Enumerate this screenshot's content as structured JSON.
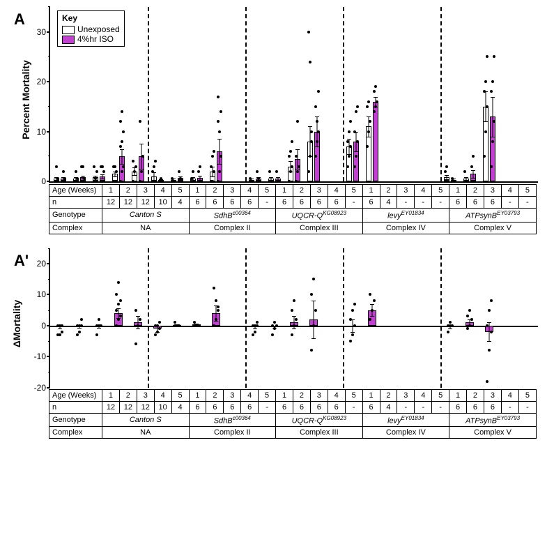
{
  "legend": {
    "title": "Key",
    "unexposed": "Unexposed",
    "exposed": "4%hr ISO"
  },
  "colors": {
    "exposed": "#c040d0",
    "unexposed": "#ffffff",
    "border": "#000000",
    "dot": "#000000"
  },
  "rowLabels": {
    "age": "Age (Weeks)",
    "n": "n",
    "genotype": "Genotype",
    "complex": "Complex"
  },
  "groups": [
    {
      "genotype": "Canton S",
      "genotype_sup": "",
      "complex": "NA",
      "weeks": 5
    },
    {
      "genotype": "SdhB",
      "genotype_sup": "c00364",
      "complex": "Complex II",
      "weeks": 5
    },
    {
      "genotype": "UQCR-Q",
      "genotype_sup": "KG08923",
      "complex": "Complex III",
      "weeks": 5
    },
    {
      "genotype": "levy",
      "genotype_sup": "EY01834",
      "complex": "Complex IV",
      "weeks": 5
    },
    {
      "genotype": "ATPsynB",
      "genotype_sup": "EY03793",
      "complex": "Complex V",
      "weeks": 5
    }
  ],
  "panelA": {
    "label": "A",
    "ylab": "Percent Mortality",
    "ylim": [
      0,
      35
    ],
    "yticks": [
      0,
      10,
      20,
      30
    ],
    "yminor_step": 5,
    "series": [
      {
        "n": [
          "12",
          "12",
          "12",
          "10",
          "4"
        ],
        "bars": [
          {
            "u": 0.6,
            "e": 0.5,
            "u_err": 0.3,
            "e_err": 0.3,
            "u_pts": [
              0,
              0,
              0,
              0,
              3,
              0.5
            ],
            "e_pts": [
              0,
              0,
              0,
              0,
              2,
              0.5
            ]
          },
          {
            "u": 0.5,
            "e": 0.8,
            "u_err": 0.3,
            "e_err": 0.3,
            "u_pts": [
              0,
              0,
              0,
              0,
              2,
              0.5
            ],
            "e_pts": [
              0,
              0,
              0,
              3,
              3,
              0.5
            ]
          },
          {
            "u": 0.8,
            "e": 1.0,
            "u_err": 0.3,
            "e_err": 0.4,
            "u_pts": [
              0,
              0,
              0,
              3,
              0.5,
              2
            ],
            "e_pts": [
              0,
              0,
              0,
              3,
              3,
              2
            ]
          },
          {
            "u": 1.5,
            "e": 5.0,
            "u_err": 0.5,
            "e_err": 1.5,
            "u_pts": [
              0,
              0,
              0,
              3,
              3,
              2
            ],
            "e_pts": [
              0,
              2,
              3,
              7,
              8,
              10,
              12,
              14
            ]
          },
          {
            "u": 2.0,
            "e": 5.0,
            "u_err": 0.8,
            "e_err": 2.5,
            "u_pts": [
              0,
              2,
              3,
              4
            ],
            "e_pts": [
              0,
              2,
              5,
              12
            ]
          }
        ]
      },
      {
        "n": [
          "6",
          "6",
          "6",
          "6",
          "-"
        ],
        "bars": [
          {
            "u": 1.0,
            "e": 0.2,
            "u_err": 0.8,
            "e_err": 0.2,
            "u_pts": [
              0,
              0,
              0,
              2,
              3,
              4
            ],
            "e_pts": [
              0,
              0,
              0,
              0,
              0.5
            ]
          },
          {
            "u": 0.3,
            "e": 0.7,
            "u_err": 0.2,
            "e_err": 0.3,
            "u_pts": [
              0,
              0,
              0,
              0.5
            ],
            "e_pts": [
              0,
              0,
              0,
              2,
              0.5
            ]
          },
          {
            "u": 0.5,
            "e": 0.7,
            "u_err": 0.3,
            "e_err": 0.4,
            "u_pts": [
              0,
              0,
              0,
              0.5,
              2
            ],
            "e_pts": [
              0,
              0,
              0,
              2,
              3
            ]
          },
          {
            "u": 2.0,
            "e": 6.0,
            "u_err": 1.0,
            "e_err": 2.5,
            "u_pts": [
              0,
              0,
              2,
              3,
              5,
              6
            ],
            "e_pts": [
              0,
              2,
              5,
              12,
              10,
              14,
              17
            ]
          },
          {
            "u": null,
            "e": null
          }
        ]
      },
      {
        "n": [
          "6",
          "6",
          "6",
          "6",
          "-"
        ],
        "bars": [
          {
            "u": 0.3,
            "e": 0.6,
            "u_err": 0.2,
            "e_err": 0.3,
            "u_pts": [
              0,
              0,
              0,
              0.5
            ],
            "e_pts": [
              0,
              0,
              0,
              2,
              0.5
            ]
          },
          {
            "u": 0.5,
            "e": 0.5,
            "u_err": 0.3,
            "e_err": 0.3,
            "u_pts": [
              0,
              0,
              0,
              2
            ],
            "e_pts": [
              0,
              0,
              0,
              2
            ]
          },
          {
            "u": 3.0,
            "e": 4.5,
            "u_err": 1.0,
            "e_err": 2.0,
            "u_pts": [
              0,
              2,
              3,
              5,
              6,
              8
            ],
            "e_pts": [
              0,
              2,
              3,
              5,
              12
            ]
          },
          {
            "u": 8.0,
            "e": 10.0,
            "u_err": 3.0,
            "e_err": 3.0,
            "u_pts": [
              2,
              5,
              8,
              30,
              24,
              10
            ],
            "e_pts": [
              5,
              8,
              10,
              15,
              12,
              18
            ]
          },
          {
            "u": null,
            "e": null
          }
        ]
      },
      {
        "n": [
          "6",
          "4",
          "-",
          "-",
          "-"
        ],
        "bars": [
          {
            "u": 7.0,
            "e": 8.0,
            "u_err": 1.5,
            "e_err": 2.0,
            "u_pts": [
              3,
              5,
              7,
              8,
              10,
              12
            ],
            "e_pts": [
              3,
              5,
              8,
              10,
              14,
              15
            ]
          },
          {
            "u": 11.0,
            "e": 16.0,
            "u_err": 2.0,
            "e_err": 1.0,
            "u_pts": [
              7,
              10,
              12,
              15,
              16
            ],
            "e_pts": [
              14,
              15,
              16,
              18,
              19
            ]
          },
          {
            "u": null,
            "e": null
          },
          {
            "u": null,
            "e": null
          },
          {
            "u": null,
            "e": null
          }
        ]
      },
      {
        "n": [
          "6",
          "6",
          "6",
          "-",
          "-"
        ],
        "bars": [
          {
            "u": 0.8,
            "e": 0.3,
            "u_err": 0.4,
            "e_err": 0.2,
            "u_pts": [
              0,
              0,
              0,
              2,
              3
            ],
            "e_pts": [
              0,
              0,
              0,
              0.5
            ]
          },
          {
            "u": 0.5,
            "e": 1.5,
            "u_err": 0.3,
            "e_err": 0.8,
            "u_pts": [
              0,
              0,
              0,
              2
            ],
            "e_pts": [
              0,
              0,
              0,
              3,
              5
            ]
          },
          {
            "u": 15.0,
            "e": 13.0,
            "u_err": 3.0,
            "e_err": 4.0,
            "u_pts": [
              5,
              10,
              15,
              18,
              20,
              25
            ],
            "e_pts": [
              3,
              8,
              12,
              18,
              20,
              25
            ]
          },
          {
            "u": null,
            "e": null
          },
          {
            "u": null,
            "e": null
          }
        ]
      }
    ]
  },
  "panelAprime": {
    "label": "A'",
    "ylab": "ΔMortality",
    "ylim": [
      -20,
      25
    ],
    "yticks": [
      -20,
      -10,
      0,
      10,
      20
    ],
    "series": [
      {
        "n": [
          "12",
          "12",
          "12",
          "10",
          "4"
        ],
        "bars": [
          {
            "v": -0.5,
            "err": 0.5,
            "pts": [
              -3,
              -3,
              -2,
              0,
              0,
              0
            ]
          },
          {
            "v": -0.3,
            "err": 0.5,
            "pts": [
              -3,
              -2,
              0,
              0,
              0,
              2
            ]
          },
          {
            "v": -0.3,
            "err": 0.5,
            "pts": [
              -3,
              0,
              0,
              0,
              2
            ]
          },
          {
            "v": 4.0,
            "err": 1.5,
            "pts": [
              0,
              2,
              3,
              5,
              7,
              8,
              10,
              14
            ]
          },
          {
            "v": 1.0,
            "err": 2.0,
            "pts": [
              -6,
              0,
              2,
              5
            ]
          }
        ]
      },
      {
        "n": [
          "6",
          "6",
          "6",
          "6",
          "-"
        ],
        "bars": [
          {
            "v": -1.0,
            "err": 1.0,
            "pts": [
              -3,
              -2,
              -1,
              0,
              0,
              1
            ]
          },
          {
            "v": 0.2,
            "err": 0.3,
            "pts": [
              0,
              0,
              0,
              1
            ]
          },
          {
            "v": 0.3,
            "err": 0.3,
            "pts": [
              0,
              0,
              0,
              1
            ]
          },
          {
            "v": 4.0,
            "err": 2.5,
            "pts": [
              0,
              2,
              5,
              12,
              8,
              6
            ]
          },
          {
            "v": null
          }
        ]
      },
      {
        "n": [
          "6",
          "6",
          "6",
          "6",
          "-"
        ],
        "bars": [
          {
            "v": -0.5,
            "err": 0.5,
            "pts": [
              -3,
              -2,
              0,
              0,
              0,
              1
            ]
          },
          {
            "v": -0.5,
            "err": 0.5,
            "pts": [
              -3,
              -1,
              0,
              0,
              1
            ]
          },
          {
            "v": 1.0,
            "err": 2.0,
            "pts": [
              -3,
              0,
              2,
              5,
              8
            ]
          },
          {
            "v": 2.0,
            "err": 6.0,
            "pts": [
              -8,
              0,
              5,
              10,
              15
            ]
          },
          {
            "v": null
          }
        ]
      },
      {
        "n": [
          "6",
          "4",
          "-",
          "-",
          "-"
        ],
        "bars": [
          {
            "v": 0.0,
            "err": 2.0,
            "pts": [
              -5,
              -3,
              0,
              2,
              5,
              7
            ]
          },
          {
            "v": 5.0,
            "err": 2.0,
            "pts": [
              2,
              5,
              8,
              10
            ]
          },
          {
            "v": null
          },
          {
            "v": null
          },
          {
            "v": null
          }
        ]
      },
      {
        "n": [
          "6",
          "6",
          "6",
          "-",
          "-"
        ],
        "bars": [
          {
            "v": -0.5,
            "err": 0.5,
            "pts": [
              -2,
              0,
              0,
              0,
              1
            ]
          },
          {
            "v": 1.0,
            "err": 1.0,
            "pts": [
              -1,
              0,
              2,
              3,
              5
            ]
          },
          {
            "v": -2.0,
            "err": 3.0,
            "pts": [
              -18,
              -8,
              -2,
              0,
              5,
              8
            ]
          },
          {
            "v": null
          },
          {
            "v": null
          }
        ]
      }
    ]
  }
}
